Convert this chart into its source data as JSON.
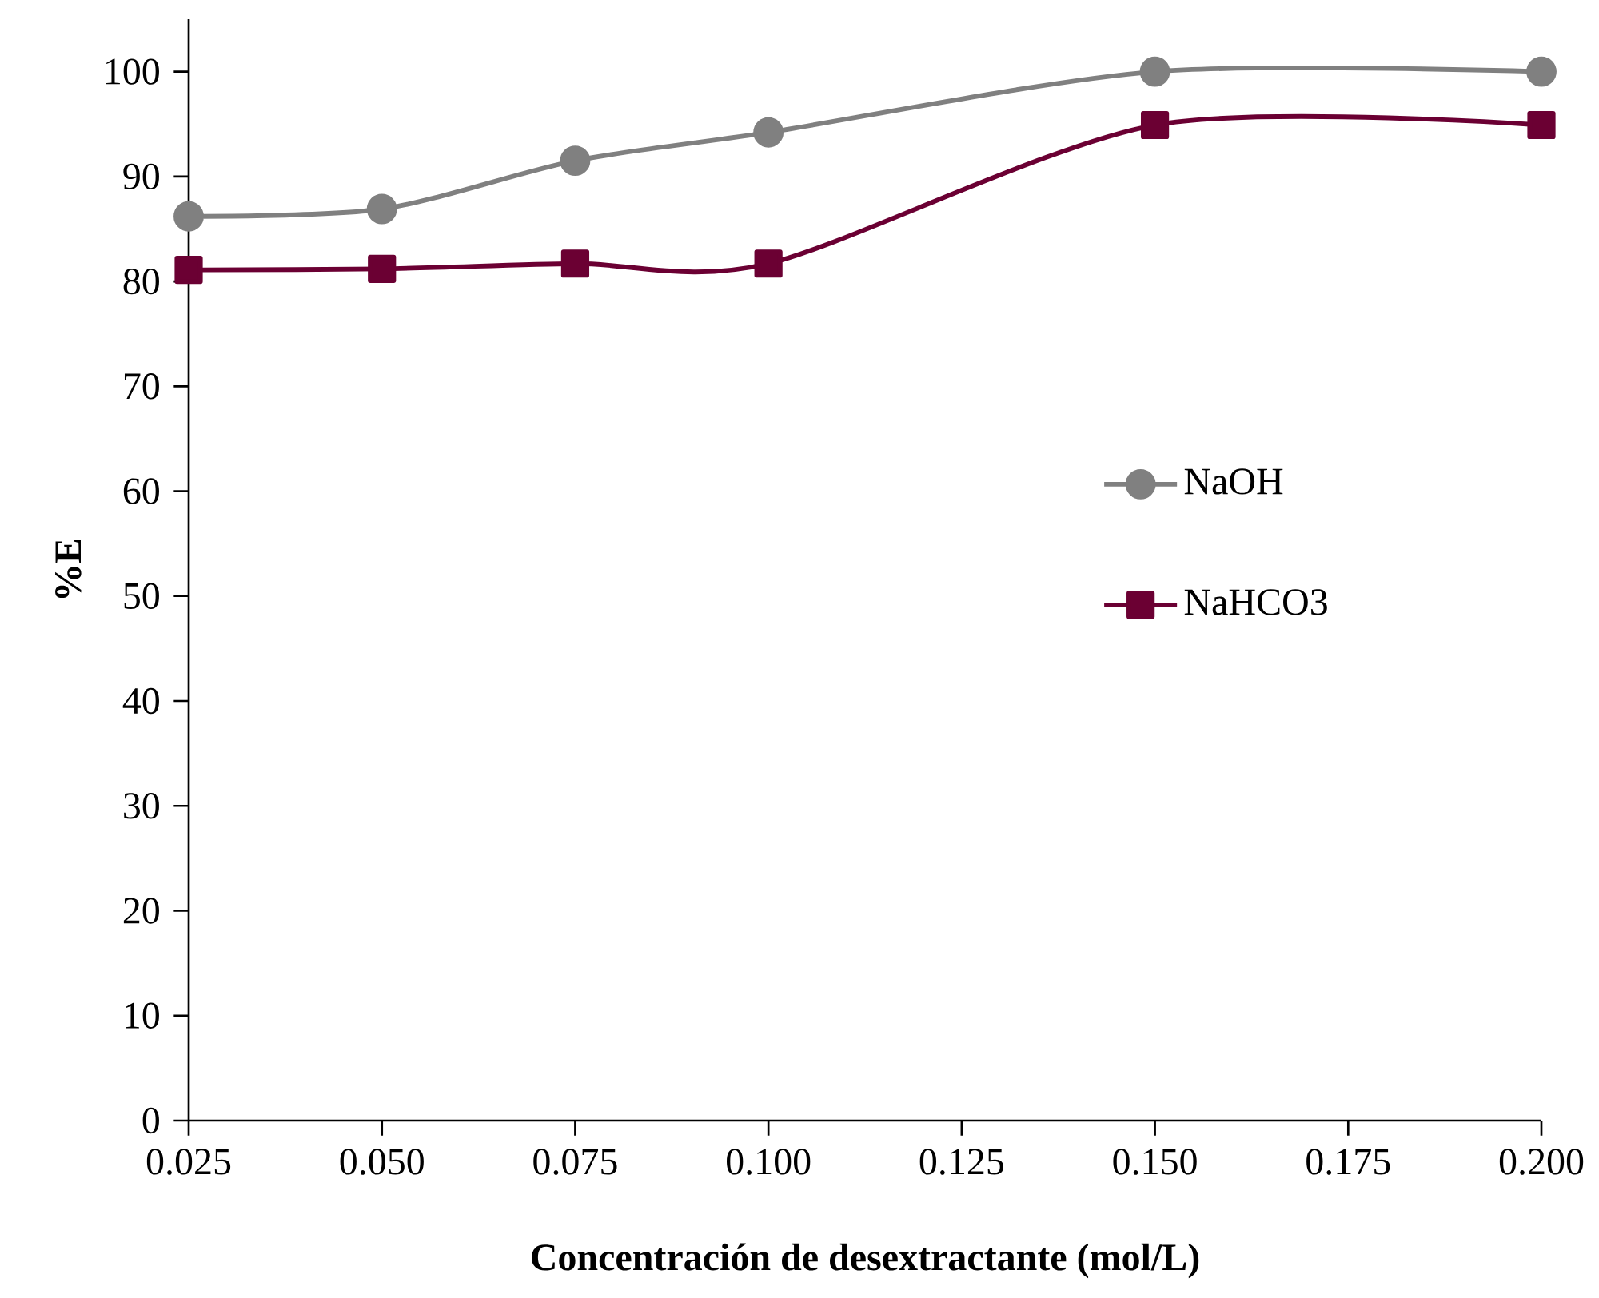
{
  "chart_data": {
    "type": "line",
    "xlabel": "Concentración de desextractante (mol/L)",
    "ylabel": "%E",
    "x": [
      0.025,
      0.05,
      0.075,
      0.1,
      0.15,
      0.2
    ],
    "series": [
      {
        "name": "NaOH",
        "color": "#808080",
        "marker": "circle",
        "values": [
          86.2,
          86.9,
          91.5,
          94.2,
          100,
          100
        ]
      },
      {
        "name": "NaHCO3",
        "color": "#6b0033",
        "marker": "square",
        "values": [
          81.1,
          81.2,
          81.7,
          81.7,
          94.9,
          94.9
        ]
      }
    ],
    "xlim": [
      0.025,
      0.2
    ],
    "ylim": [
      0,
      105
    ],
    "xticks": [
      {
        "value": 0.025,
        "label": "0.025"
      },
      {
        "value": 0.05,
        "label": "0.050"
      },
      {
        "value": 0.075,
        "label": "0.075"
      },
      {
        "value": 0.1,
        "label": "0.100"
      },
      {
        "value": 0.125,
        "label": "0.125"
      },
      {
        "value": 0.15,
        "label": "0.150"
      },
      {
        "value": 0.175,
        "label": "0.175"
      },
      {
        "value": 0.2,
        "label": "0.200"
      }
    ],
    "yticks": [
      0,
      10,
      20,
      30,
      40,
      50,
      60,
      70,
      80,
      90,
      100
    ],
    "grid": false,
    "legend": "right",
    "line_style": "solid"
  }
}
